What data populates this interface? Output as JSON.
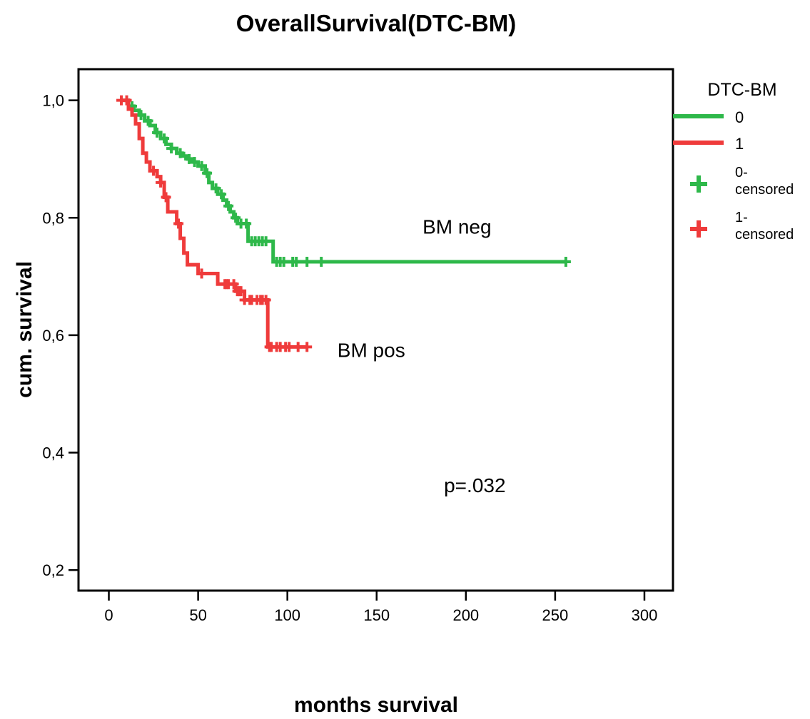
{
  "chart_data": {
    "type": "line",
    "step": true,
    "title": "OverallSurvival(DTC-BM)",
    "xlabel": "months survival",
    "ylabel": "cum. survival",
    "xlim": [
      -17,
      316
    ],
    "ylim": [
      0.165,
      1.053
    ],
    "x_ticks": [
      0,
      50,
      100,
      150,
      200,
      250,
      300
    ],
    "x_tick_labels": [
      "0",
      "50",
      "100",
      "150",
      "200",
      "250",
      "300"
    ],
    "y_ticks": [
      0.2,
      0.4,
      0.6,
      0.8,
      1.0
    ],
    "y_tick_labels": [
      "0,2",
      "0,4",
      "0,6",
      "0,8",
      "1,0"
    ],
    "grid": false,
    "legend": {
      "title": "DTC-BM",
      "position": "right",
      "entries": [
        {
          "label": "0",
          "kind": "line",
          "color": "#2eb84a"
        },
        {
          "label": "1",
          "kind": "line",
          "color": "#ef3b3b"
        },
        {
          "label": "0-\ncensored",
          "kind": "cross",
          "color": "#2eb84a"
        },
        {
          "label": "1-\ncensored",
          "kind": "cross",
          "color": "#ef3b3b"
        }
      ]
    },
    "annotations": [
      {
        "text": "BM neg",
        "x": 195,
        "y": 0.785
      },
      {
        "text": "BM pos",
        "x": 147,
        "y": 0.575
      },
      {
        "text": "p=.032",
        "x": 205,
        "y": 0.345
      }
    ],
    "series": [
      {
        "name": "0",
        "color": "#2eb84a",
        "steps": [
          [
            8,
            1.0
          ],
          [
            11,
            0.99
          ],
          [
            14,
            0.983
          ],
          [
            17,
            0.975
          ],
          [
            20,
            0.965
          ],
          [
            23,
            0.957
          ],
          [
            26,
            0.945
          ],
          [
            29,
            0.935
          ],
          [
            32,
            0.925
          ],
          [
            35,
            0.918
          ],
          [
            38,
            0.91
          ],
          [
            41,
            0.905
          ],
          [
            44,
            0.9
          ],
          [
            47,
            0.895
          ],
          [
            50,
            0.888
          ],
          [
            54,
            0.876
          ],
          [
            56,
            0.86
          ],
          [
            58,
            0.85
          ],
          [
            61,
            0.84
          ],
          [
            64,
            0.83
          ],
          [
            66,
            0.82
          ],
          [
            68,
            0.81
          ],
          [
            70,
            0.8
          ],
          [
            72,
            0.79
          ],
          [
            78,
            0.76
          ],
          [
            92,
            0.725
          ],
          [
            256,
            0.725
          ]
        ],
        "censored_x": [
          13,
          18,
          22,
          27,
          31,
          35,
          40,
          45,
          48,
          52,
          55,
          60,
          63,
          67,
          71,
          74,
          77,
          80,
          82,
          84,
          86,
          88,
          94,
          96,
          98,
          103,
          105,
          111,
          119,
          256
        ]
      },
      {
        "name": "1",
        "color": "#ef3b3b",
        "steps": [
          [
            7,
            1.0
          ],
          [
            11,
            0.985
          ],
          [
            13,
            0.975
          ],
          [
            15,
            0.96
          ],
          [
            17,
            0.935
          ],
          [
            19,
            0.91
          ],
          [
            21,
            0.895
          ],
          [
            23,
            0.88
          ],
          [
            27,
            0.87
          ],
          [
            29,
            0.86
          ],
          [
            31,
            0.835
          ],
          [
            33,
            0.81
          ],
          [
            38,
            0.79
          ],
          [
            40,
            0.765
          ],
          [
            42,
            0.74
          ],
          [
            44,
            0.72
          ],
          [
            50,
            0.705
          ],
          [
            61,
            0.687
          ],
          [
            71,
            0.675
          ],
          [
            76,
            0.66
          ],
          [
            89,
            0.58
          ],
          [
            111,
            0.58
          ]
        ],
        "censored_x": [
          7,
          10,
          25,
          29,
          32,
          39,
          52,
          65,
          66,
          67,
          70,
          72,
          73,
          74,
          76,
          79,
          80,
          83,
          85,
          86,
          88,
          90,
          91,
          94,
          96,
          99,
          101,
          106,
          111
        ]
      }
    ]
  }
}
